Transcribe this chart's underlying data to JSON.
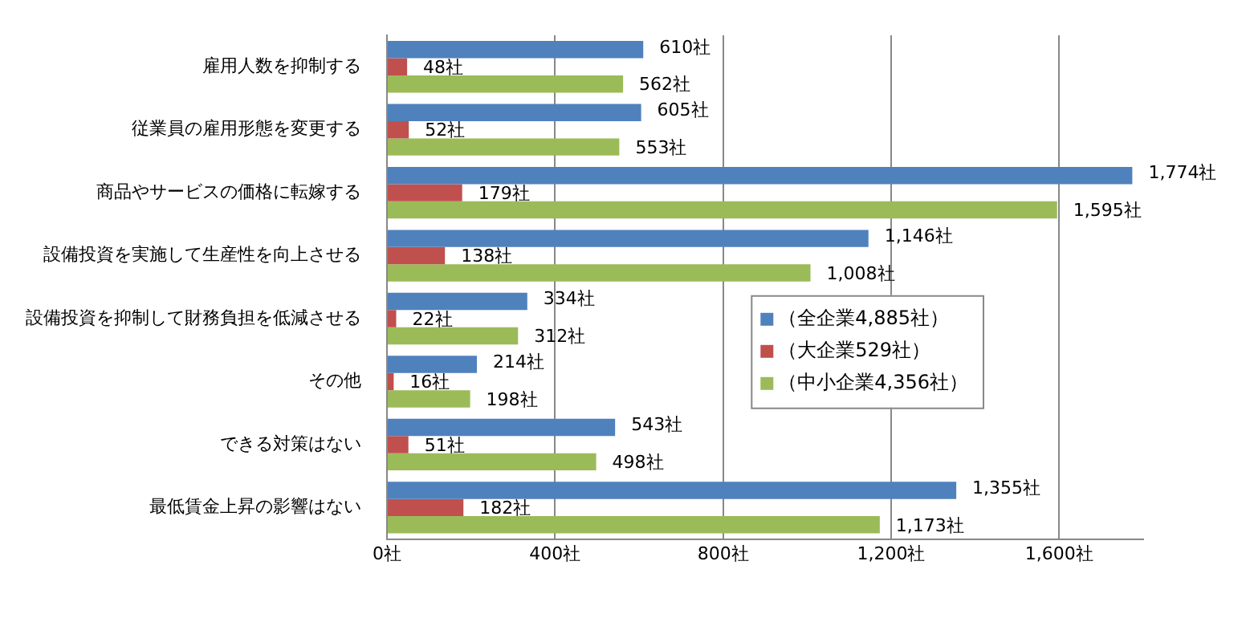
{
  "chart_data": {
    "type": "bar",
    "orientation": "horizontal",
    "categories": [
      "雇用人数を抑制する",
      "従業員の雇用形態を変更する",
      "商品やサービスの価格に転嫁する",
      "設備投資を実施して生産性を向上させる",
      "設備投資を抑制して財務負担を低減させる",
      "その他",
      "できる対策はない",
      "最低賃金上昇の影響はない"
    ],
    "series": [
      {
        "name": "（全企業4,885社）",
        "color": "#4f81bd",
        "values": [
          610,
          605,
          1774,
          1146,
          334,
          214,
          543,
          1355
        ],
        "value_labels": [
          "610社",
          "605社",
          "1,774社",
          "1,146社",
          "334社",
          "214社",
          "543社",
          "1,355社"
        ]
      },
      {
        "name": "（大企業529社）",
        "color": "#c0504d",
        "values": [
          48,
          52,
          179,
          138,
          22,
          16,
          51,
          182
        ],
        "value_labels": [
          "48社",
          "52社",
          "179社",
          "138社",
          "22社",
          "16社",
          "51社",
          "182社"
        ]
      },
      {
        "name": "（中小企業4,356社）",
        "color": "#9bbb59",
        "values": [
          562,
          553,
          1595,
          1008,
          312,
          198,
          498,
          1173
        ],
        "value_labels": [
          "562社",
          "553社",
          "1,595社",
          "1,008社",
          "312社",
          "198社",
          "498社",
          "1,173社"
        ]
      }
    ],
    "xlim": [
      0,
      1800
    ],
    "xticks": [
      {
        "value": 0,
        "label": "0社"
      },
      {
        "value": 400,
        "label": "400社"
      },
      {
        "value": 800,
        "label": "800社"
      },
      {
        "value": 1200,
        "label": "1,200社"
      },
      {
        "value": 1600,
        "label": "1,600社"
      }
    ],
    "grid": "x",
    "legend": "right"
  }
}
